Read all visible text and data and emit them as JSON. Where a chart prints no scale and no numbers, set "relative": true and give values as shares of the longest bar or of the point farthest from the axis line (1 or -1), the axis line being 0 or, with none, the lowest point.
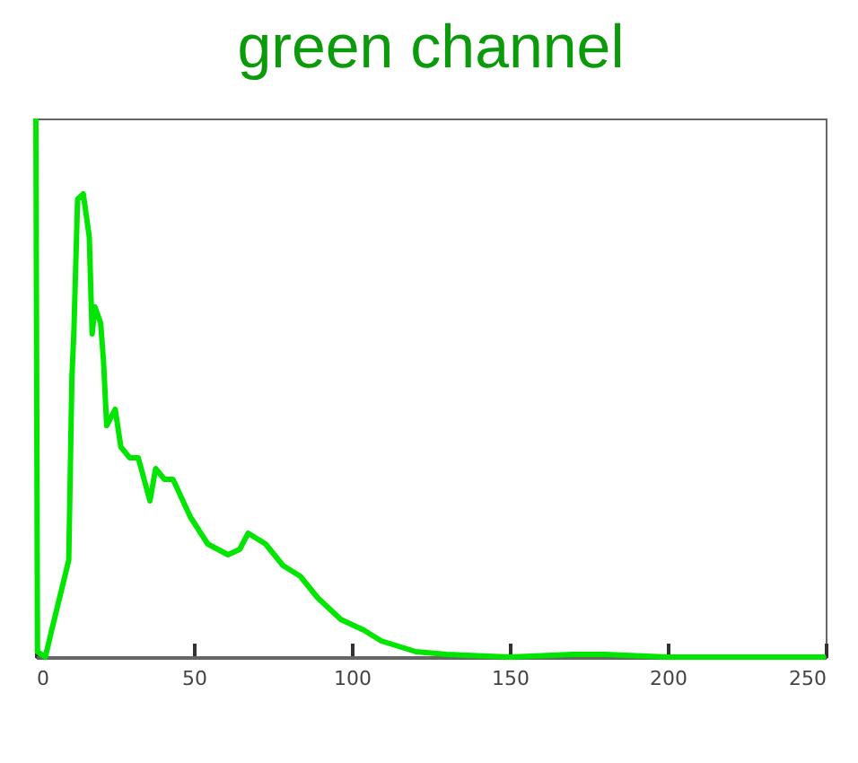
{
  "chart_data": {
    "type": "line",
    "title": "green channel",
    "relative": true,
    "xlim": [
      0,
      250
    ],
    "xticks": [
      0,
      50,
      100,
      150,
      200,
      250
    ],
    "grid": false,
    "legend": false,
    "marker": "none",
    "line_style": "solid",
    "x": [
      0,
      0.5,
      3,
      5,
      10.4,
      11.4,
      12,
      13.2,
      15,
      16.9,
      17.8,
      18.7,
      20.5,
      21.4,
      22.4,
      25.1,
      26.9,
      29.7,
      32.4,
      36.1,
      37.9,
      40.7,
      43.4,
      48.9,
      54.4,
      60.8,
      64.5,
      67.2,
      72.7,
      78.2,
      83.7,
      89.2,
      96.5,
      103.8,
      109.3,
      120.3,
      130,
      150,
      170,
      180,
      200,
      250
    ],
    "series": [
      {
        "color": "#00e600",
        "values": [
          1,
          0.01,
          0,
          0.05,
          0.18,
          0.52,
          0.6,
          0.85,
          0.86,
          0.78,
          0.6,
          0.65,
          0.62,
          0.55,
          0.43,
          0.46,
          0.39,
          0.37,
          0.37,
          0.29,
          0.35,
          0.33,
          0.33,
          0.26,
          0.21,
          0.19,
          0.2,
          0.23,
          0.21,
          0.17,
          0.15,
          0.11,
          0.07,
          0.05,
          0.03,
          0.01,
          0.005,
          0,
          0.005,
          0.005,
          0,
          0
        ]
      }
    ]
  }
}
